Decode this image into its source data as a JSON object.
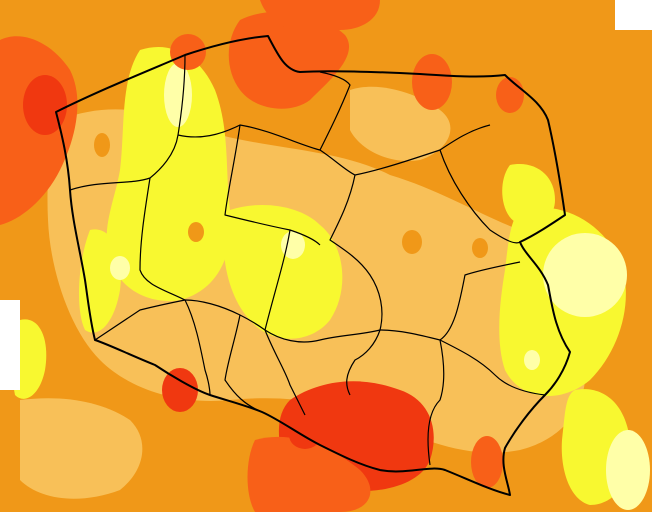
{
  "map": {
    "colors": {
      "background": "#ffffff",
      "pale": "#ffffa8",
      "yellow": "#f8f830",
      "light_orange": "#f8c058",
      "orange": "#f09818",
      "deep_orange": "#f86018",
      "red": "#f03810",
      "boundary": "#000000"
    },
    "legend": []
  }
}
